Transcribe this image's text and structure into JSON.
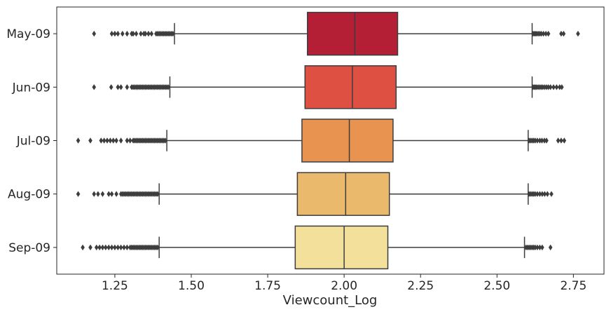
{
  "chart_data": {
    "type": "boxplot",
    "orientation": "horizontal",
    "title": "",
    "xlabel": "Viewcount_Log",
    "ylabel": "",
    "xlim": [
      1.06,
      2.85
    ],
    "x_ticks": [
      1.25,
      1.5,
      1.75,
      2.0,
      2.25,
      2.5,
      2.75
    ],
    "x_tick_labels": [
      "1.25",
      "1.50",
      "1.75",
      "2.00",
      "2.25",
      "2.50",
      "2.75"
    ],
    "grid": false,
    "legend": "none",
    "categories": [
      "May-09",
      "Jun-09",
      "Jul-09",
      "Aug-09",
      "Sep-09"
    ],
    "boxes": [
      {
        "label": "May-09",
        "color": "#b41f36",
        "whisker_low": 1.445,
        "q1": 1.88,
        "median": 2.035,
        "q3": 2.175,
        "whisker_high": 2.615,
        "outliers_low": [
          1.182,
          1.24,
          1.25,
          1.26,
          1.275,
          1.29,
          1.305,
          1.31,
          1.32,
          1.335,
          1.345,
          1.35,
          1.36,
          1.37,
          1.385,
          1.39,
          1.395,
          1.4,
          1.405,
          1.41,
          1.415,
          1.42,
          1.425,
          1.43,
          1.435,
          1.44
        ],
        "outliers_high": [
          2.618,
          2.622,
          2.626,
          2.63,
          2.635,
          2.64,
          2.645,
          2.652,
          2.66,
          2.668,
          2.71,
          2.718,
          2.765
        ]
      },
      {
        "label": "Jun-09",
        "color": "#de5041",
        "whisker_low": 1.43,
        "q1": 1.872,
        "median": 2.027,
        "q3": 2.17,
        "whisker_high": 2.615,
        "outliers_low": [
          1.182,
          1.238,
          1.26,
          1.27,
          1.29,
          1.305,
          1.31,
          1.315,
          1.32,
          1.325,
          1.33,
          1.335,
          1.34,
          1.345,
          1.35,
          1.355,
          1.36,
          1.365,
          1.37,
          1.375,
          1.38,
          1.385,
          1.39,
          1.395,
          1.4,
          1.405,
          1.41,
          1.415,
          1.42,
          1.425
        ],
        "outliers_high": [
          2.618,
          2.622,
          2.626,
          2.63,
          2.635,
          2.64,
          2.645,
          2.65,
          2.656,
          2.662,
          2.668,
          2.675,
          2.685,
          2.695,
          2.705,
          2.712
        ]
      },
      {
        "label": "Jul-09",
        "color": "#e99350",
        "whisker_low": 1.42,
        "q1": 1.862,
        "median": 2.017,
        "q3": 2.16,
        "whisker_high": 2.602,
        "outliers_low": [
          1.13,
          1.17,
          1.205,
          1.215,
          1.225,
          1.235,
          1.245,
          1.255,
          1.27,
          1.29,
          1.3,
          1.31,
          1.315,
          1.32,
          1.325,
          1.33,
          1.335,
          1.34,
          1.345,
          1.35,
          1.355,
          1.36,
          1.365,
          1.37,
          1.375,
          1.38,
          1.385,
          1.39,
          1.395,
          1.4,
          1.405,
          1.41,
          1.415
        ],
        "outliers_high": [
          2.605,
          2.61,
          2.615,
          2.62,
          2.625,
          2.632,
          2.64,
          2.647,
          2.655,
          2.662,
          2.7,
          2.71,
          2.72
        ]
      },
      {
        "label": "Aug-09",
        "color": "#ebb96b",
        "whisker_low": 1.395,
        "q1": 1.847,
        "median": 2.005,
        "q3": 2.148,
        "whisker_high": 2.602,
        "outliers_low": [
          1.13,
          1.182,
          1.195,
          1.21,
          1.23,
          1.24,
          1.255,
          1.27,
          1.275,
          1.28,
          1.285,
          1.29,
          1.295,
          1.3,
          1.305,
          1.31,
          1.315,
          1.32,
          1.325,
          1.33,
          1.335,
          1.34,
          1.345,
          1.35,
          1.355,
          1.36,
          1.365,
          1.37,
          1.375,
          1.38,
          1.385,
          1.39
        ],
        "outliers_high": [
          2.605,
          2.61,
          2.615,
          2.62,
          2.625,
          2.632,
          2.64,
          2.648,
          2.656,
          2.665,
          2.678
        ]
      },
      {
        "label": "Sep-09",
        "color": "#f2e09b",
        "whisker_low": 1.395,
        "q1": 1.84,
        "median": 2.0,
        "q3": 2.143,
        "whisker_high": 2.59,
        "outliers_low": [
          1.145,
          1.17,
          1.19,
          1.2,
          1.21,
          1.22,
          1.23,
          1.24,
          1.25,
          1.26,
          1.27,
          1.28,
          1.29,
          1.3,
          1.305,
          1.31,
          1.315,
          1.32,
          1.325,
          1.33,
          1.335,
          1.34,
          1.345,
          1.35,
          1.355,
          1.36,
          1.365,
          1.37,
          1.375,
          1.38,
          1.385,
          1.39
        ],
        "outliers_high": [
          2.595,
          2.6,
          2.605,
          2.61,
          2.615,
          2.62,
          2.625,
          2.632,
          2.64,
          2.648,
          2.675
        ]
      }
    ]
  }
}
